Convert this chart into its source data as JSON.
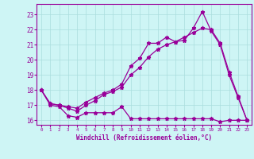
{
  "xlabel": "Windchill (Refroidissement éolien,°C)",
  "background_color": "#cef5f5",
  "line_color": "#990099",
  "grid_color": "#aadddd",
  "xlim": [
    -0.5,
    23.5
  ],
  "ylim": [
    15.7,
    23.7
  ],
  "yticks": [
    16,
    17,
    18,
    19,
    20,
    21,
    22,
    23
  ],
  "xticks": [
    0,
    1,
    2,
    3,
    4,
    5,
    6,
    7,
    8,
    9,
    10,
    11,
    12,
    13,
    14,
    15,
    16,
    17,
    18,
    19,
    20,
    21,
    22,
    23
  ],
  "line1_x": [
    0,
    1,
    2,
    3,
    4,
    5,
    6,
    7,
    8,
    9,
    10,
    11,
    12,
    13,
    14,
    15,
    16,
    17,
    18,
    19,
    20,
    21,
    22,
    23
  ],
  "line1_y": [
    18.0,
    17.0,
    16.9,
    16.3,
    16.2,
    16.5,
    16.5,
    16.5,
    16.5,
    16.9,
    16.1,
    16.1,
    16.1,
    16.1,
    16.1,
    16.1,
    16.1,
    16.1,
    16.1,
    16.1,
    15.9,
    16.0,
    16.0,
    16.0
  ],
  "line2_x": [
    0,
    1,
    2,
    3,
    4,
    5,
    6,
    7,
    8,
    9,
    10,
    11,
    12,
    13,
    14,
    15,
    16,
    17,
    18,
    19,
    20,
    21,
    22,
    23
  ],
  "line2_y": [
    18.0,
    17.1,
    17.0,
    16.9,
    16.8,
    17.2,
    17.5,
    17.8,
    18.0,
    18.4,
    19.6,
    20.1,
    21.1,
    21.1,
    21.5,
    21.2,
    21.3,
    22.1,
    23.2,
    21.9,
    21.0,
    19.0,
    17.5,
    16.0
  ],
  "line3_x": [
    0,
    1,
    2,
    3,
    4,
    5,
    6,
    7,
    8,
    9,
    10,
    11,
    12,
    13,
    14,
    15,
    16,
    17,
    18,
    19,
    20,
    21,
    22,
    23
  ],
  "line3_y": [
    18.0,
    17.1,
    17.0,
    16.8,
    16.6,
    17.0,
    17.3,
    17.7,
    17.9,
    18.2,
    19.0,
    19.5,
    20.2,
    20.7,
    21.0,
    21.2,
    21.5,
    21.8,
    22.1,
    22.0,
    21.1,
    19.2,
    17.6,
    16.0
  ]
}
